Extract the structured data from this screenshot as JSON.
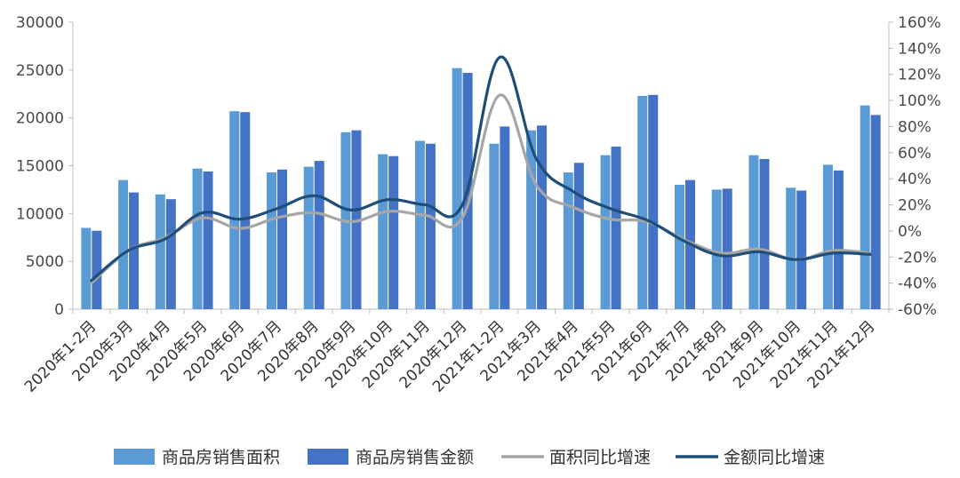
{
  "chart_data": {
    "type": "bar",
    "title": "",
    "categories": [
      "2020年1-2月",
      "2020年3月",
      "2020年4月",
      "2020年5月",
      "2020年6月",
      "2020年7月",
      "2020年8月",
      "2020年9月",
      "2020年10月",
      "2020年11月",
      "2020年12月",
      "2021年1-2月",
      "2021年3月",
      "2021年4月",
      "2021年5月",
      "2021年6月",
      "2021年7月",
      "2021年8月",
      "2021年9月",
      "2021年10月",
      "2021年11月",
      "2021年12月"
    ],
    "left_axis": {
      "ylim": [
        0,
        30000
      ],
      "ticks": [
        "0",
        "5000",
        "10000",
        "15000",
        "20000",
        "25000",
        "30000"
      ]
    },
    "right_axis": {
      "ylim": [
        -60,
        160
      ],
      "unit": "%",
      "ticks": [
        "-60%",
        "-40%",
        "-20%",
        "0%",
        "20%",
        "40%",
        "60%",
        "80%",
        "100%",
        "120%",
        "140%",
        "160%"
      ]
    },
    "series": [
      {
        "name": "商品房销售面积",
        "type": "bar",
        "axis": "left",
        "color": "#5b9bd5",
        "values": [
          8500,
          13500,
          12000,
          14700,
          20700,
          14300,
          14900,
          18500,
          16200,
          17600,
          25200,
          17300,
          18700,
          14300,
          16100,
          22300,
          13000,
          12500,
          16100,
          12700,
          15100,
          21300
        ]
      },
      {
        "name": "商品房销售金额",
        "type": "bar",
        "axis": "left",
        "color": "#4472c4",
        "values": [
          8200,
          12200,
          11500,
          14400,
          20600,
          14600,
          15500,
          18700,
          16000,
          17300,
          24700,
          19100,
          19200,
          15300,
          17000,
          22400,
          13500,
          12600,
          15700,
          12400,
          14500,
          20300
        ]
      },
      {
        "name": "面积同比增速",
        "type": "line",
        "axis": "right",
        "color": "#a6a6a6",
        "values": [
          -40,
          -15,
          -5,
          10,
          2,
          10,
          14,
          7,
          15,
          12,
          10,
          104,
          35,
          18,
          9,
          7,
          -7,
          -17,
          -14,
          -22,
          -15,
          -17
        ]
      },
      {
        "name": "金额同比增速",
        "type": "line",
        "axis": "right",
        "color": "#1f4e79",
        "values": [
          -38,
          -15,
          -6,
          14,
          9,
          17,
          27,
          16,
          24,
          20,
          20,
          133,
          55,
          30,
          17,
          8,
          -8,
          -19,
          -16,
          -22,
          -17,
          -18
        ]
      }
    ],
    "legend_position": "bottom",
    "grid": false
  }
}
